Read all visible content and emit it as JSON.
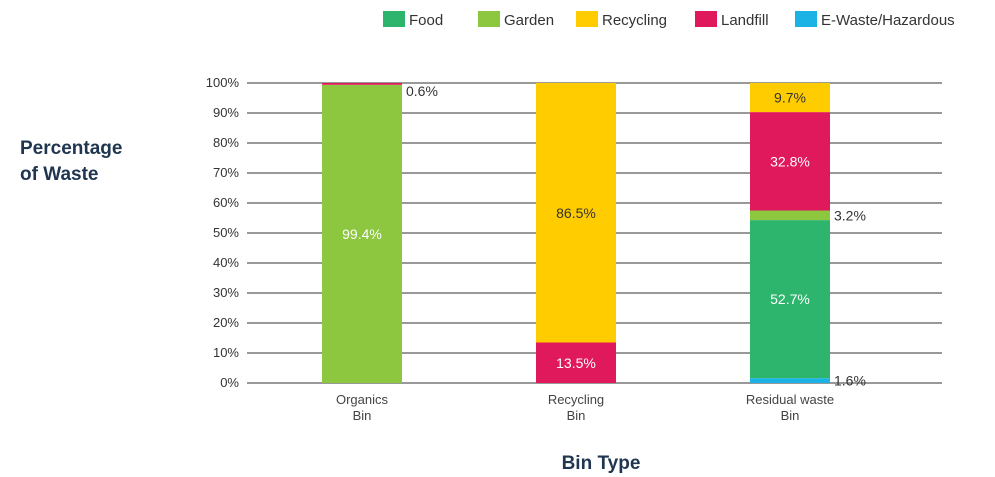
{
  "chart_data": {
    "type": "bar",
    "stacked": true,
    "xlabel": "Bin Type",
    "ylabel": [
      "Percentage",
      "of Waste"
    ],
    "ylim": [
      0,
      100
    ],
    "yticks": [
      "0%",
      "10%",
      "20%",
      "30%",
      "40%",
      "50%",
      "60%",
      "70%",
      "80%",
      "90%",
      "100%"
    ],
    "grid": true,
    "legend_position": "top-right",
    "categories": [
      [
        "Organics",
        "Bin"
      ],
      [
        "Recycling",
        "Bin"
      ],
      [
        "Residual waste",
        "Bin"
      ]
    ],
    "series": [
      {
        "name": "E-Waste/Hazardous",
        "color": "#1bb2e6",
        "values": [
          0,
          0,
          1.6
        ],
        "labels": [
          "",
          "",
          "1.6%"
        ]
      },
      {
        "name": "Food",
        "color": "#2db56d",
        "values": [
          0,
          0,
          52.7
        ],
        "labels": [
          "",
          "",
          "52.7%"
        ]
      },
      {
        "name": "Garden",
        "color": "#8dc63f",
        "values": [
          99.4,
          0,
          3.2
        ],
        "labels": [
          "99.4%",
          "",
          "3.2%"
        ]
      },
      {
        "name": "Landfill",
        "color": "#e0185c",
        "values": [
          0.6,
          13.5,
          32.8
        ],
        "labels": [
          "0.6%",
          "13.5%",
          "32.8%"
        ]
      },
      {
        "name": "Recycling",
        "color": "#ffcc00",
        "values": [
          0,
          86.5,
          9.7
        ],
        "labels": [
          "",
          "86.5%",
          "9.7%"
        ]
      }
    ],
    "legend_order": [
      "Food",
      "Garden",
      "Recycling",
      "Landfill",
      "E-Waste/Hazardous"
    ]
  }
}
